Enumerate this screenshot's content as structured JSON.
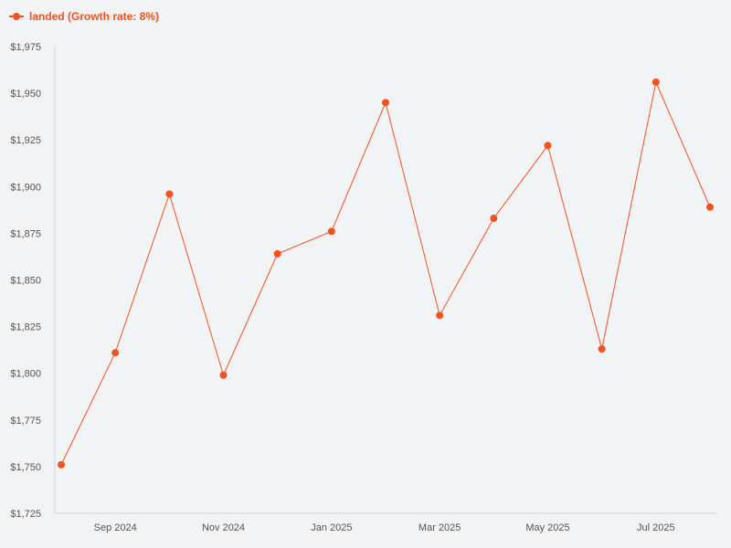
{
  "colors": {
    "series": "#f4511e",
    "axis": "#d0d4e4",
    "tick_text": "#555555",
    "background": "#f2f3f5"
  },
  "legend": {
    "icon": "line-dot-legend-icon",
    "label": "landed (Growth rate: 8%)",
    "placement": "top-left"
  },
  "chart_data": {
    "type": "line",
    "title": "",
    "xlabel": "",
    "ylabel": "",
    "x": [
      "2024-08",
      "2024-09",
      "2024-10",
      "2024-11",
      "2024-12",
      "2025-01",
      "2025-02",
      "2025-03",
      "2025-04",
      "2025-05",
      "2025-06",
      "2025-07",
      "2025-08"
    ],
    "x_tick_labels": [
      {
        "x": "2024-09",
        "label": "Sep 2024"
      },
      {
        "x": "2024-11",
        "label": "Nov 2024"
      },
      {
        "x": "2025-01",
        "label": "Jan 2025"
      },
      {
        "x": "2025-03",
        "label": "Mar 2025"
      },
      {
        "x": "2025-05",
        "label": "May 2025"
      },
      {
        "x": "2025-07",
        "label": "Jul 2025"
      }
    ],
    "y_ticks": [
      1725,
      1750,
      1775,
      1800,
      1825,
      1850,
      1875,
      1900,
      1925,
      1950,
      1975
    ],
    "y_tick_labels": [
      "$1,725",
      "$1,750",
      "$1,775",
      "$1,800",
      "$1,825",
      "$1,850",
      "$1,875",
      "$1,900",
      "$1,925",
      "$1,950",
      "$1,975"
    ],
    "ylim": [
      1725,
      1975
    ],
    "grid": false,
    "series": [
      {
        "name": "landed (Growth rate: 8%)",
        "values": [
          1751,
          1811,
          1896,
          1799,
          1864,
          1876,
          1945,
          1831,
          1883,
          1922,
          1813,
          1956,
          1889
        ]
      }
    ]
  }
}
